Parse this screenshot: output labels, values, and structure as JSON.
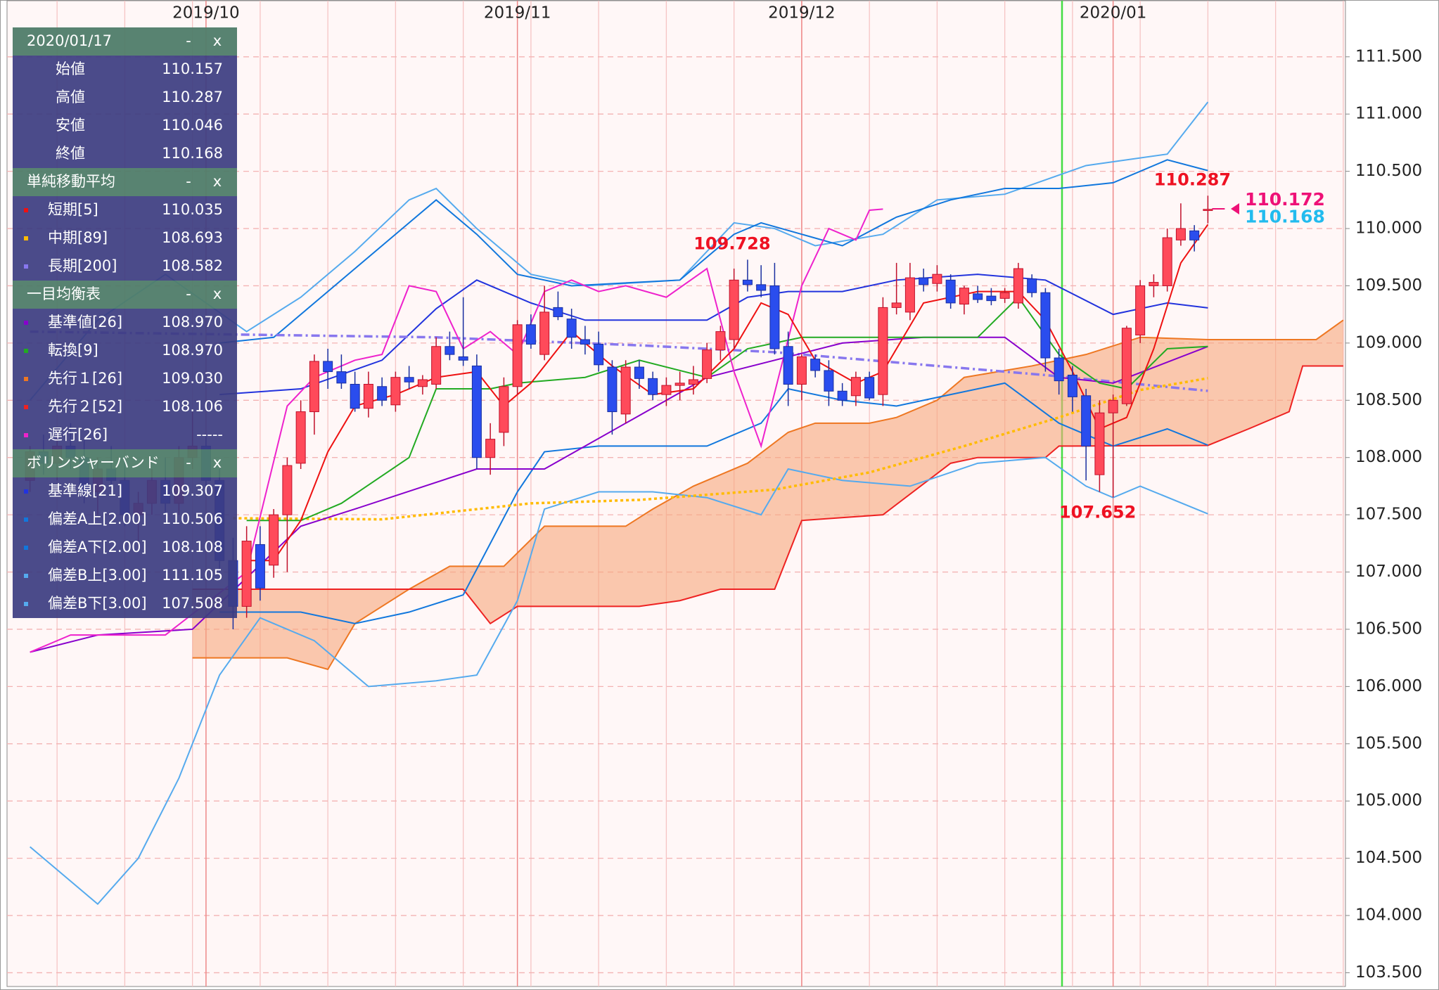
{
  "chart_data": {
    "type": "candlestick",
    "categories": [
      null,
      null,
      null,
      null,
      null,
      null,
      null,
      null,
      null,
      null,
      null,
      null,
      null,
      "2019/10",
      null,
      null,
      null,
      null,
      null,
      null,
      null,
      null,
      null,
      null,
      null,
      null,
      null,
      null,
      null,
      null,
      null,
      null,
      null,
      null,
      null,
      null,
      "2019/11",
      null,
      null,
      null,
      null,
      null,
      null,
      null,
      null,
      null,
      null,
      null,
      null,
      null,
      null,
      null,
      null,
      null,
      null,
      null,
      null,
      "2019/12",
      null,
      null,
      null,
      null,
      null,
      null,
      null,
      null,
      null,
      null,
      null,
      null,
      null,
      null,
      null,
      null,
      null,
      null,
      null,
      null,
      null,
      null,
      "2020/01",
      null,
      null,
      null,
      null,
      null,
      null,
      null
    ],
    "open": [
      107.8,
      108.05,
      107.95,
      108.1,
      108.0,
      107.7,
      107.9,
      107.8,
      107.5,
      107.6,
      107.8,
      107.6,
      108.0,
      108.1,
      107.8,
      107.1,
      106.7,
      107.24,
      107.06,
      107.5,
      107.95,
      108.4,
      108.84,
      108.75,
      108.64,
      108.43,
      108.62,
      108.46,
      108.7,
      108.62,
      108.64,
      108.97,
      108.88,
      108.8,
      108.0,
      108.22,
      108.62,
      109.16,
      108.9,
      109.31,
      109.21,
      109.03,
      108.99,
      108.79,
      108.38,
      108.79,
      108.69,
      108.55,
      108.63,
      108.64,
      108.69,
      108.94,
      109.03,
      109.55,
      109.51,
      109.5,
      108.97,
      108.64,
      108.86,
      108.76,
      108.58,
      108.54,
      108.7,
      108.55,
      109.31,
      109.27,
      109.57,
      109.52,
      109.55,
      109.34,
      109.43,
      109.41,
      109.39,
      109.35,
      109.56,
      109.44,
      108.87,
      108.72,
      108.54,
      107.85,
      108.39,
      108.47,
      109.07,
      109.5,
      109.5,
      109.9,
      109.98,
      110.157
    ],
    "high": [
      108.1,
      108.2,
      108.2,
      108.3,
      108.15,
      108.0,
      108.1,
      108.0,
      107.7,
      107.9,
      108.0,
      108.1,
      108.4,
      108.2,
      107.9,
      107.3,
      107.4,
      107.4,
      107.55,
      108.0,
      108.5,
      108.9,
      108.95,
      108.9,
      108.75,
      108.75,
      108.7,
      108.75,
      108.8,
      108.72,
      109.05,
      109.1,
      109.4,
      108.9,
      108.3,
      108.7,
      109.2,
      109.25,
      109.5,
      109.45,
      109.3,
      109.15,
      109.1,
      108.85,
      108.85,
      108.85,
      108.75,
      108.7,
      108.75,
      108.8,
      109.0,
      109.15,
      109.65,
      109.728,
      109.68,
      109.7,
      109.1,
      108.9,
      108.9,
      108.85,
      108.65,
      108.75,
      108.75,
      109.4,
      109.7,
      109.7,
      109.65,
      109.68,
      109.6,
      109.5,
      109.5,
      109.48,
      109.48,
      109.7,
      109.6,
      109.48,
      108.95,
      108.8,
      108.6,
      108.5,
      108.55,
      109.15,
      109.55,
      109.6,
      110.0,
      110.22,
      110.03,
      110.287
    ],
    "low": [
      107.7,
      107.85,
      107.8,
      107.9,
      107.6,
      107.5,
      107.7,
      107.4,
      107.2,
      107.5,
      107.5,
      107.5,
      107.9,
      107.7,
      107.0,
      106.5,
      106.6,
      106.75,
      106.95,
      107.0,
      107.9,
      108.2,
      108.6,
      108.6,
      108.4,
      108.35,
      108.45,
      108.4,
      108.6,
      108.55,
      108.6,
      108.85,
      108.8,
      107.9,
      107.85,
      108.1,
      108.55,
      108.95,
      108.85,
      109.2,
      108.95,
      108.9,
      108.75,
      108.2,
      108.3,
      108.6,
      108.5,
      108.45,
      108.5,
      108.55,
      108.65,
      108.85,
      108.95,
      109.45,
      109.4,
      108.9,
      108.45,
      108.5,
      108.7,
      108.45,
      108.45,
      108.45,
      108.5,
      108.45,
      109.25,
      109.2,
      109.45,
      109.45,
      109.3,
      109.25,
      109.35,
      109.33,
      109.35,
      109.3,
      109.4,
      108.75,
      108.55,
      108.4,
      107.8,
      107.7,
      107.652,
      108.45,
      109.0,
      109.4,
      109.45,
      109.85,
      109.8,
      110.046
    ],
    "close": [
      108.05,
      107.95,
      108.1,
      108.0,
      107.7,
      107.9,
      107.8,
      107.5,
      107.6,
      107.8,
      107.6,
      108.0,
      108.1,
      107.8,
      107.1,
      106.7,
      107.27,
      106.86,
      107.5,
      107.93,
      108.4,
      108.84,
      108.75,
      108.65,
      108.43,
      108.64,
      108.5,
      108.7,
      108.66,
      108.68,
      108.97,
      108.9,
      108.85,
      108.0,
      108.16,
      108.62,
      109.16,
      108.99,
      109.27,
      109.23,
      109.05,
      108.99,
      108.81,
      108.4,
      108.79,
      108.69,
      108.55,
      108.63,
      108.65,
      108.68,
      108.94,
      109.1,
      109.55,
      109.51,
      109.46,
      108.95,
      108.64,
      108.88,
      108.76,
      108.58,
      108.5,
      108.7,
      108.52,
      109.31,
      109.35,
      109.57,
      109.51,
      109.6,
      109.35,
      109.48,
      109.38,
      109.37,
      109.44,
      109.65,
      109.44,
      108.87,
      108.67,
      108.53,
      108.1,
      108.39,
      108.5,
      109.13,
      109.5,
      109.53,
      109.92,
      110.0,
      109.9,
      110.168
    ],
    "up_color": "#ff4a5a",
    "down_color": "#2a4dee",
    "ylim": [
      103.38,
      111.99
    ],
    "yticks": [
      {
        "value": 103.5,
        "label": "103.500"
      },
      {
        "value": 104.0,
        "label": "104.000"
      },
      {
        "value": 104.5,
        "label": "104.500"
      },
      {
        "value": 105.0,
        "label": "105.000"
      },
      {
        "value": 105.5,
        "label": "105.500"
      },
      {
        "value": 106.0,
        "label": "106.000"
      },
      {
        "value": 106.5,
        "label": "106.500"
      },
      {
        "value": 107.0,
        "label": "107.000"
      },
      {
        "value": 107.5,
        "label": "107.500"
      },
      {
        "value": 108.0,
        "label": "108.000"
      },
      {
        "value": 108.5,
        "label": "108.500"
      },
      {
        "value": 109.0,
        "label": "109.000"
      },
      {
        "value": 109.5,
        "label": "109.500"
      },
      {
        "value": 110.0,
        "label": "110.000"
      },
      {
        "value": 110.5,
        "label": "110.500"
      },
      {
        "value": 111.0,
        "label": "111.000"
      },
      {
        "value": 111.5,
        "label": "111.500"
      }
    ],
    "grid": true,
    "ichimoku": {
      "cloud_color": "#f6a77c",
      "span_a": {
        "color": "#ee7722",
        "x": [
          12,
          19,
          22,
          24,
          28,
          31,
          35,
          38,
          44,
          46,
          49,
          53,
          56,
          58,
          62,
          64,
          67,
          69,
          74,
          78,
          82,
          87,
          93,
          95,
          97
        ],
        "values": [
          106.25,
          106.25,
          106.15,
          106.55,
          106.85,
          107.05,
          107.05,
          107.4,
          107.4,
          107.55,
          107.75,
          107.95,
          108.22,
          108.3,
          108.3,
          108.35,
          108.5,
          108.7,
          108.8,
          108.9,
          109.05,
          109.03,
          109.03,
          109.03,
          109.2
        ]
      },
      "span_b": {
        "color": "#ee2222",
        "x": [
          12,
          28,
          32,
          34,
          36,
          45,
          48,
          51,
          55,
          57,
          63,
          68,
          70,
          75,
          76,
          87,
          90,
          93,
          94,
          97
        ],
        "values": [
          106.85,
          106.85,
          106.85,
          106.55,
          106.7,
          106.7,
          106.75,
          106.85,
          106.85,
          107.45,
          107.5,
          107.95,
          108.0,
          108.0,
          108.1,
          108.106,
          108.25,
          108.4,
          108.8,
          108.8
        ]
      }
    },
    "overlays": [
      {
        "color": "#55aaee",
        "x": [
          0,
          5,
          10,
          16,
          20,
          24,
          28,
          30,
          33,
          37,
          41,
          48,
          52,
          55,
          58,
          63,
          67,
          72,
          78,
          84,
          87
        ],
        "values": [
          108.5,
          109.2,
          109.6,
          109.1,
          109.4,
          109.8,
          110.25,
          110.35,
          110.0,
          109.6,
          109.5,
          109.55,
          110.05,
          110.0,
          109.85,
          109.95,
          110.25,
          110.3,
          110.55,
          110.65,
          111.105
        ]
      },
      {
        "color": "#55aaee",
        "x": [
          0,
          5,
          8,
          11,
          14,
          17,
          21,
          25,
          30,
          33,
          36,
          38,
          42,
          46,
          50,
          54,
          56,
          60,
          65,
          70,
          75,
          78,
          80,
          82,
          87
        ],
        "values": [
          104.6,
          104.1,
          104.5,
          105.2,
          106.1,
          106.6,
          106.4,
          106.0,
          106.05,
          106.1,
          106.75,
          107.55,
          107.7,
          107.7,
          107.65,
          107.5,
          107.9,
          107.8,
          107.75,
          107.95,
          108.0,
          107.75,
          107.65,
          107.75,
          107.508
        ]
      },
      {
        "color": "#1177dd",
        "x": [
          14,
          18,
          24,
          28,
          30,
          33,
          36,
          40,
          48,
          52,
          54,
          57,
          60,
          64,
          68,
          72,
          76,
          80,
          84,
          87
        ],
        "values": [
          109.0,
          109.05,
          109.65,
          110.05,
          110.25,
          109.95,
          109.6,
          109.5,
          109.55,
          109.95,
          110.05,
          109.95,
          109.85,
          110.1,
          110.25,
          110.35,
          110.35,
          110.4,
          110.6,
          110.506
        ]
      },
      {
        "color": "#1177dd",
        "x": [
          14,
          20,
          24,
          28,
          32,
          36,
          38,
          42,
          46,
          50,
          54,
          56,
          60,
          64,
          68,
          72,
          76,
          80,
          84,
          87
        ],
        "values": [
          106.65,
          106.65,
          106.55,
          106.65,
          106.8,
          107.7,
          108.05,
          108.1,
          108.1,
          108.1,
          108.3,
          108.6,
          108.5,
          108.45,
          108.55,
          108.65,
          108.3,
          108.1,
          108.25,
          108.108
        ]
      },
      {
        "color": "#2233dd",
        "x": [
          14,
          20,
          26,
          30,
          33,
          37,
          41,
          45,
          50,
          53,
          56,
          60,
          64,
          70,
          75,
          80,
          84,
          87
        ],
        "values": [
          108.55,
          108.6,
          108.85,
          109.3,
          109.55,
          109.35,
          109.2,
          109.2,
          109.2,
          109.4,
          109.45,
          109.45,
          109.55,
          109.6,
          109.55,
          109.25,
          109.35,
          109.307
        ]
      },
      {
        "color": "#8877ee",
        "dash": "dashdot",
        "x": [
          0,
          30,
          45,
          55,
          65,
          75,
          87
        ],
        "values": [
          109.1,
          109.05,
          108.98,
          108.92,
          108.82,
          108.72,
          108.582
        ]
      },
      {
        "color": "#ffbb00",
        "dash": "dot",
        "x": [
          15,
          26,
          37,
          45,
          55,
          62,
          69,
          76,
          82,
          87
        ],
        "values": [
          107.47,
          107.46,
          107.6,
          107.63,
          107.72,
          107.87,
          108.1,
          108.35,
          108.59,
          108.693
        ]
      },
      {
        "color": "#8800cc",
        "x": [
          0,
          5,
          12,
          20,
          24,
          33,
          38,
          44,
          50,
          55,
          60,
          66,
          72,
          76,
          80,
          87
        ],
        "values": [
          106.3,
          106.45,
          106.5,
          107.4,
          107.55,
          107.9,
          107.9,
          108.3,
          108.7,
          108.85,
          109.0,
          109.05,
          109.05,
          108.7,
          108.65,
          108.97
        ]
      },
      {
        "color": "#22aa22",
        "x": [
          16,
          20,
          23,
          28,
          30,
          34,
          36,
          41,
          45,
          50,
          53,
          57,
          62,
          70,
          73,
          76,
          79,
          81,
          84,
          87
        ],
        "values": [
          107.45,
          107.45,
          107.6,
          108.0,
          108.6,
          108.6,
          108.65,
          108.7,
          108.85,
          108.7,
          108.95,
          109.05,
          109.05,
          109.05,
          109.4,
          108.9,
          108.65,
          108.6,
          108.95,
          108.97
        ]
      },
      {
        "color": "#ee22cc",
        "x": [
          0,
          3,
          10,
          16,
          19,
          21,
          24,
          26,
          28,
          30,
          32,
          34,
          36,
          38,
          40,
          42,
          44,
          47,
          50,
          52,
          54,
          57,
          59,
          61,
          62,
          63
        ],
        "values": [
          106.3,
          106.45,
          106.45,
          107.0,
          108.45,
          108.7,
          108.85,
          108.9,
          109.5,
          109.45,
          108.95,
          109.1,
          108.9,
          109.45,
          109.55,
          109.45,
          109.5,
          109.4,
          109.65,
          108.75,
          108.1,
          109.5,
          110.0,
          109.9,
          110.16,
          110.17
        ]
      },
      {
        "color": "#ee1111",
        "x": [
          16,
          18,
          20,
          22,
          24,
          27,
          30,
          33,
          35,
          37,
          40,
          43,
          46,
          49,
          52,
          54,
          56,
          58,
          61,
          63,
          66,
          70,
          73,
          75,
          77,
          79,
          81,
          83,
          85,
          87
        ],
        "values": [
          107.1,
          107.1,
          107.45,
          108.05,
          108.45,
          108.55,
          108.7,
          108.75,
          108.45,
          108.65,
          109.1,
          108.8,
          108.55,
          108.6,
          108.95,
          109.35,
          109.25,
          108.85,
          108.65,
          108.75,
          109.35,
          109.45,
          109.45,
          109.2,
          108.75,
          108.25,
          108.35,
          108.95,
          109.7,
          110.035
        ]
      }
    ],
    "annotations": [
      {
        "label": "109.728",
        "value": 109.728,
        "x": 53,
        "color": "#ee1122"
      },
      {
        "label": "107.652",
        "value": 107.652,
        "x": 80,
        "color": "#ee1122"
      },
      {
        "label": "110.287",
        "value": 110.287,
        "x": 87,
        "color": "#ee1122"
      }
    ],
    "price_tags": [
      {
        "label": "110.172",
        "value": 110.172,
        "color": "#ee1177"
      },
      {
        "label": "110.168",
        "value": 110.168,
        "color": "#22bbee"
      }
    ]
  },
  "info_panel": {
    "controls": [
      "-",
      "x"
    ],
    "sections": [
      {
        "title": "2020/01/17",
        "rows": [
          {
            "label": "始値",
            "value": "110.157"
          },
          {
            "label": "高値",
            "value": "110.287"
          },
          {
            "label": "安値",
            "value": "110.046"
          },
          {
            "label": "終値",
            "value": "110.168"
          }
        ]
      },
      {
        "title": "単純移動平均",
        "rows": [
          {
            "label": "短期[5]",
            "value": "110.035",
            "color": "#ee1111"
          },
          {
            "label": "中期[89]",
            "value": "108.693",
            "color": "#ffbb00"
          },
          {
            "label": "長期[200]",
            "value": "108.582",
            "color": "#8877ee"
          }
        ]
      },
      {
        "title": "一目均衡表",
        "rows": [
          {
            "label": "基準値[26]",
            "value": "108.970",
            "color": "#8800cc"
          },
          {
            "label": "転換[9]",
            "value": "108.970",
            "color": "#22aa22"
          },
          {
            "label": "先行１[26]",
            "value": "109.030",
            "color": "#ee7722"
          },
          {
            "label": "先行２[52]",
            "value": "108.106",
            "color": "#ee2222"
          },
          {
            "label": "遅行[26]",
            "value": "-----",
            "color": "#ee22cc"
          }
        ]
      },
      {
        "title": "ボリンジャーバンド",
        "rows": [
          {
            "label": "基準線[21]",
            "value": "109.307",
            "color": "#2233dd"
          },
          {
            "label": "偏差A上[2.00]",
            "value": "110.506",
            "color": "#1177dd"
          },
          {
            "label": "偏差A下[2.00]",
            "value": "108.108",
            "color": "#1177dd"
          },
          {
            "label": "偏差B上[3.00]",
            "value": "111.105",
            "color": "#55aaee"
          },
          {
            "label": "偏差B下[3.00]",
            "value": "107.508",
            "color": "#55aaee"
          }
        ]
      }
    ]
  }
}
